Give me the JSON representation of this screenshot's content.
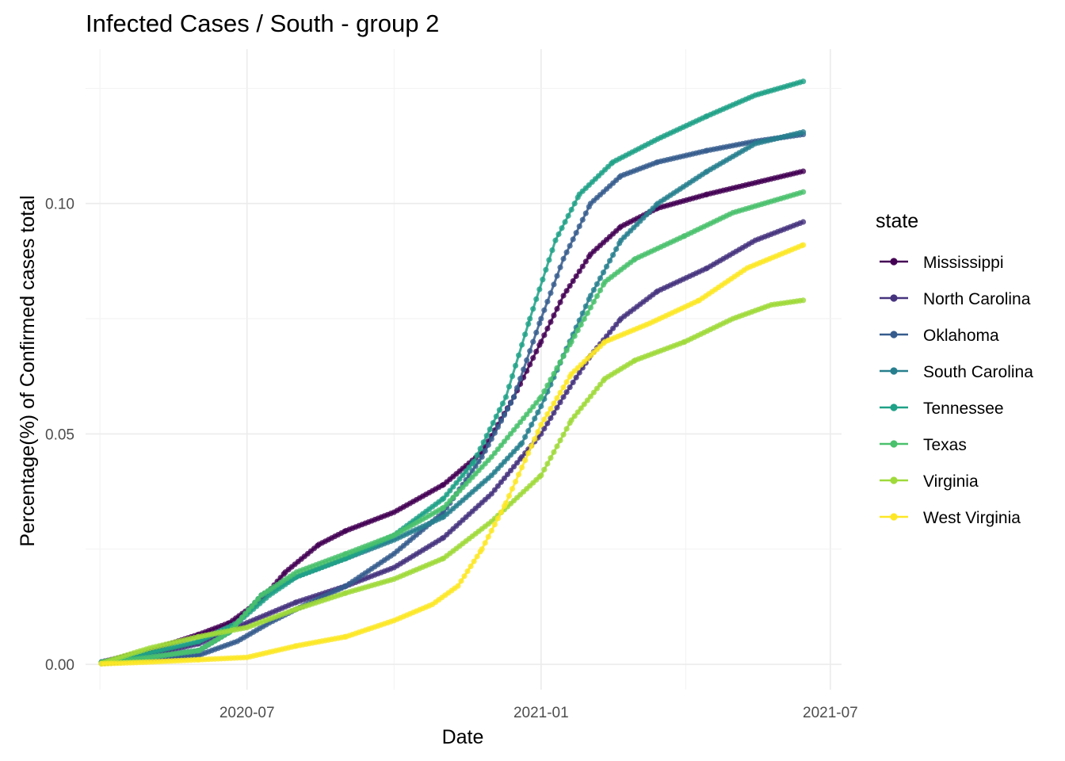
{
  "chart_data": {
    "type": "line",
    "title": "Infected Cases / South - group 2",
    "xlabel": "Date",
    "ylabel": "Percentage(%) of Confirmed cases total",
    "x_ticks": [
      "2020-07",
      "2021-01",
      "2021-07"
    ],
    "y_ticks": [
      "0.00",
      "0.05",
      "0.10"
    ],
    "xlim": [
      "2020-03-22",
      "2021-07-08"
    ],
    "ylim": [
      -0.0055,
      0.1335
    ],
    "grid": true,
    "legend": {
      "title": "state",
      "position": "right"
    },
    "series": [
      {
        "name": "Mississippi",
        "color": "#440154",
        "points": [
          [
            "2020-04-01",
            0.0005
          ],
          [
            "2020-05-01",
            0.003
          ],
          [
            "2020-06-01",
            0.0065
          ],
          [
            "2020-06-20",
            0.009
          ],
          [
            "2020-07-10",
            0.014
          ],
          [
            "2020-07-25",
            0.02
          ],
          [
            "2020-08-15",
            0.026
          ],
          [
            "2020-09-01",
            0.029
          ],
          [
            "2020-10-01",
            0.033
          ],
          [
            "2020-11-01",
            0.039
          ],
          [
            "2020-11-25",
            0.046
          ],
          [
            "2020-12-15",
            0.058
          ],
          [
            "2021-01-01",
            0.07
          ],
          [
            "2021-01-15",
            0.08
          ],
          [
            "2021-02-01",
            0.089
          ],
          [
            "2021-02-20",
            0.095
          ],
          [
            "2021-03-15",
            0.099
          ],
          [
            "2021-04-15",
            0.102
          ],
          [
            "2021-05-15",
            0.1045
          ],
          [
            "2021-06-14",
            0.107
          ]
        ]
      },
      {
        "name": "North Carolina",
        "color": "#46337e",
        "points": [
          [
            "2020-04-01",
            0.0002
          ],
          [
            "2020-05-01",
            0.002
          ],
          [
            "2020-06-01",
            0.0045
          ],
          [
            "2020-07-01",
            0.009
          ],
          [
            "2020-08-01",
            0.0135
          ],
          [
            "2020-09-01",
            0.017
          ],
          [
            "2020-10-01",
            0.021
          ],
          [
            "2020-11-01",
            0.0275
          ],
          [
            "2020-12-01",
            0.037
          ],
          [
            "2020-12-20",
            0.045
          ],
          [
            "2021-01-01",
            0.05
          ],
          [
            "2021-01-15",
            0.058
          ],
          [
            "2021-02-01",
            0.067
          ],
          [
            "2021-02-20",
            0.075
          ],
          [
            "2021-03-15",
            0.081
          ],
          [
            "2021-04-15",
            0.086
          ],
          [
            "2021-05-15",
            0.092
          ],
          [
            "2021-06-14",
            0.096
          ]
        ]
      },
      {
        "name": "Oklahoma",
        "color": "#365c8d",
        "points": [
          [
            "2020-04-01",
            0.0002
          ],
          [
            "2020-05-01",
            0.001
          ],
          [
            "2020-06-01",
            0.002
          ],
          [
            "2020-06-25",
            0.005
          ],
          [
            "2020-07-15",
            0.009
          ],
          [
            "2020-08-01",
            0.012
          ],
          [
            "2020-09-01",
            0.017
          ],
          [
            "2020-10-01",
            0.024
          ],
          [
            "2020-11-01",
            0.033
          ],
          [
            "2020-11-25",
            0.045
          ],
          [
            "2020-12-15",
            0.058
          ],
          [
            "2021-01-01",
            0.075
          ],
          [
            "2021-01-15",
            0.088
          ],
          [
            "2021-02-01",
            0.1
          ],
          [
            "2021-02-20",
            0.106
          ],
          [
            "2021-03-15",
            0.109
          ],
          [
            "2021-04-15",
            0.1115
          ],
          [
            "2021-05-15",
            0.1135
          ],
          [
            "2021-06-14",
            0.115
          ]
        ]
      },
      {
        "name": "South Carolina",
        "color": "#277f8e",
        "points": [
          [
            "2020-04-01",
            0.0004
          ],
          [
            "2020-05-01",
            0.0015
          ],
          [
            "2020-06-01",
            0.003
          ],
          [
            "2020-06-20",
            0.007
          ],
          [
            "2020-07-10",
            0.015
          ],
          [
            "2020-08-01",
            0.019
          ],
          [
            "2020-09-01",
            0.023
          ],
          [
            "2020-10-01",
            0.027
          ],
          [
            "2020-11-01",
            0.032
          ],
          [
            "2020-12-01",
            0.041
          ],
          [
            "2020-12-20",
            0.048
          ],
          [
            "2021-01-01",
            0.056
          ],
          [
            "2021-01-15",
            0.067
          ],
          [
            "2021-02-01",
            0.08
          ],
          [
            "2021-02-20",
            0.092
          ],
          [
            "2021-03-15",
            0.1
          ],
          [
            "2021-04-15",
            0.107
          ],
          [
            "2021-05-15",
            0.113
          ],
          [
            "2021-06-14",
            0.1155
          ]
        ]
      },
      {
        "name": "Tennessee",
        "color": "#1fa187",
        "points": [
          [
            "2020-04-01",
            0.0005
          ],
          [
            "2020-05-01",
            0.0025
          ],
          [
            "2020-06-01",
            0.005
          ],
          [
            "2020-06-25",
            0.009
          ],
          [
            "2020-07-15",
            0.015
          ],
          [
            "2020-08-01",
            0.019
          ],
          [
            "2020-09-01",
            0.023
          ],
          [
            "2020-10-01",
            0.028
          ],
          [
            "2020-11-01",
            0.036
          ],
          [
            "2020-11-20",
            0.044
          ],
          [
            "2020-12-10",
            0.058
          ],
          [
            "2020-12-25",
            0.075
          ],
          [
            "2021-01-10",
            0.092
          ],
          [
            "2021-01-25",
            0.102
          ],
          [
            "2021-02-15",
            0.109
          ],
          [
            "2021-03-15",
            0.114
          ],
          [
            "2021-04-15",
            0.119
          ],
          [
            "2021-05-15",
            0.1235
          ],
          [
            "2021-06-14",
            0.1265
          ]
        ]
      },
      {
        "name": "Texas",
        "color": "#4ac16d",
        "points": [
          [
            "2020-04-01",
            0.0002
          ],
          [
            "2020-05-01",
            0.0015
          ],
          [
            "2020-06-01",
            0.003
          ],
          [
            "2020-06-20",
            0.007
          ],
          [
            "2020-07-10",
            0.015
          ],
          [
            "2020-08-01",
            0.02
          ],
          [
            "2020-09-01",
            0.024
          ],
          [
            "2020-10-01",
            0.028
          ],
          [
            "2020-11-01",
            0.034
          ],
          [
            "2020-12-01",
            0.045
          ],
          [
            "2021-01-01",
            0.058
          ],
          [
            "2021-01-20",
            0.07
          ],
          [
            "2021-02-10",
            0.083
          ],
          [
            "2021-03-01",
            0.088
          ],
          [
            "2021-04-01",
            0.093
          ],
          [
            "2021-05-01",
            0.098
          ],
          [
            "2021-06-14",
            0.1025
          ]
        ]
      },
      {
        "name": "Virginia",
        "color": "#9fda3a",
        "points": [
          [
            "2020-04-01",
            0.0003
          ],
          [
            "2020-05-01",
            0.0035
          ],
          [
            "2020-06-01",
            0.006
          ],
          [
            "2020-07-01",
            0.008
          ],
          [
            "2020-08-01",
            0.012
          ],
          [
            "2020-09-01",
            0.0155
          ],
          [
            "2020-10-01",
            0.0185
          ],
          [
            "2020-11-01",
            0.023
          ],
          [
            "2020-12-01",
            0.031
          ],
          [
            "2021-01-01",
            0.041
          ],
          [
            "2021-01-20",
            0.053
          ],
          [
            "2021-02-10",
            0.062
          ],
          [
            "2021-03-01",
            0.066
          ],
          [
            "2021-04-01",
            0.07
          ],
          [
            "2021-05-01",
            0.075
          ],
          [
            "2021-05-25",
            0.078
          ],
          [
            "2021-06-14",
            0.079
          ]
        ]
      },
      {
        "name": "West Virginia",
        "color": "#fde725",
        "points": [
          [
            "2020-04-01",
            0.0001
          ],
          [
            "2020-05-01",
            0.0005
          ],
          [
            "2020-06-01",
            0.001
          ],
          [
            "2020-07-01",
            0.0015
          ],
          [
            "2020-08-01",
            0.004
          ],
          [
            "2020-09-01",
            0.006
          ],
          [
            "2020-10-01",
            0.0095
          ],
          [
            "2020-10-25",
            0.013
          ],
          [
            "2020-11-10",
            0.017
          ],
          [
            "2020-11-25",
            0.025
          ],
          [
            "2020-12-10",
            0.035
          ],
          [
            "2021-01-01",
            0.052
          ],
          [
            "2021-01-20",
            0.063
          ],
          [
            "2021-02-10",
            0.07
          ],
          [
            "2021-03-10",
            0.074
          ],
          [
            "2021-04-10",
            0.079
          ],
          [
            "2021-05-10",
            0.086
          ],
          [
            "2021-06-14",
            0.091
          ]
        ]
      }
    ]
  }
}
